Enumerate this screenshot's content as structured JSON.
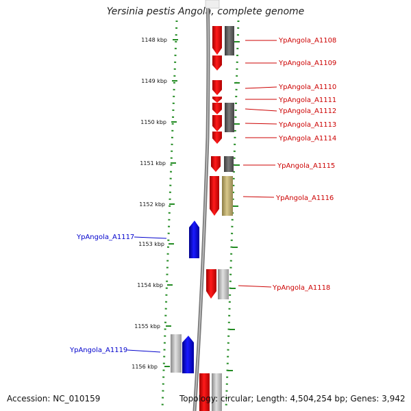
{
  "header": {
    "title": "Yersinia pestis Angola, complete genome"
  },
  "footer": {
    "accession": "Accession: NC_010159",
    "topology": "Topology: circular; Length: 4,504,254 bp; Genes: 3,942"
  },
  "scale": {
    "ticks": [
      "1148 kbp",
      "1149 kbp",
      "1150 kbp",
      "1151 kbp",
      "1152 kbp",
      "1153 kbp",
      "1154 kbp",
      "1155 kbp",
      "1156 kbp"
    ]
  },
  "genes": [
    {
      "name": "YpAngola_A1108",
      "strand": "plus",
      "color": "#dd1111"
    },
    {
      "name": "YpAngola_A1109",
      "strand": "plus",
      "color": "#dd1111"
    },
    {
      "name": "YpAngola_A1110",
      "strand": "plus",
      "color": "#dd1111"
    },
    {
      "name": "YpAngola_A1111",
      "strand": "plus",
      "color": "#dd1111"
    },
    {
      "name": "YpAngola_A1112",
      "strand": "plus",
      "color": "#dd1111"
    },
    {
      "name": "YpAngola_A1113",
      "strand": "plus",
      "color": "#dd1111"
    },
    {
      "name": "YpAngola_A1114",
      "strand": "plus",
      "color": "#dd1111"
    },
    {
      "name": "YpAngola_A1115",
      "strand": "plus",
      "color": "#dd1111"
    },
    {
      "name": "YpAngola_A1116",
      "strand": "plus",
      "color": "#dd1111"
    },
    {
      "name": "YpAngola_A1117",
      "strand": "minus",
      "color": "#0000dd"
    },
    {
      "name": "YpAngola_A1118",
      "strand": "plus",
      "color": "#dd1111"
    },
    {
      "name": "YpAngola_A1119",
      "strand": "minus",
      "color": "#0000dd"
    }
  ],
  "colors": {
    "plus_label": "#cc0000",
    "minus_label": "#0000cc",
    "cog_dark": "#5a5a5a",
    "cog_light": "#b0b0b0",
    "cog_khaki": "#b8a868",
    "dotted_track": "#228b22",
    "backbone": "#888888"
  }
}
